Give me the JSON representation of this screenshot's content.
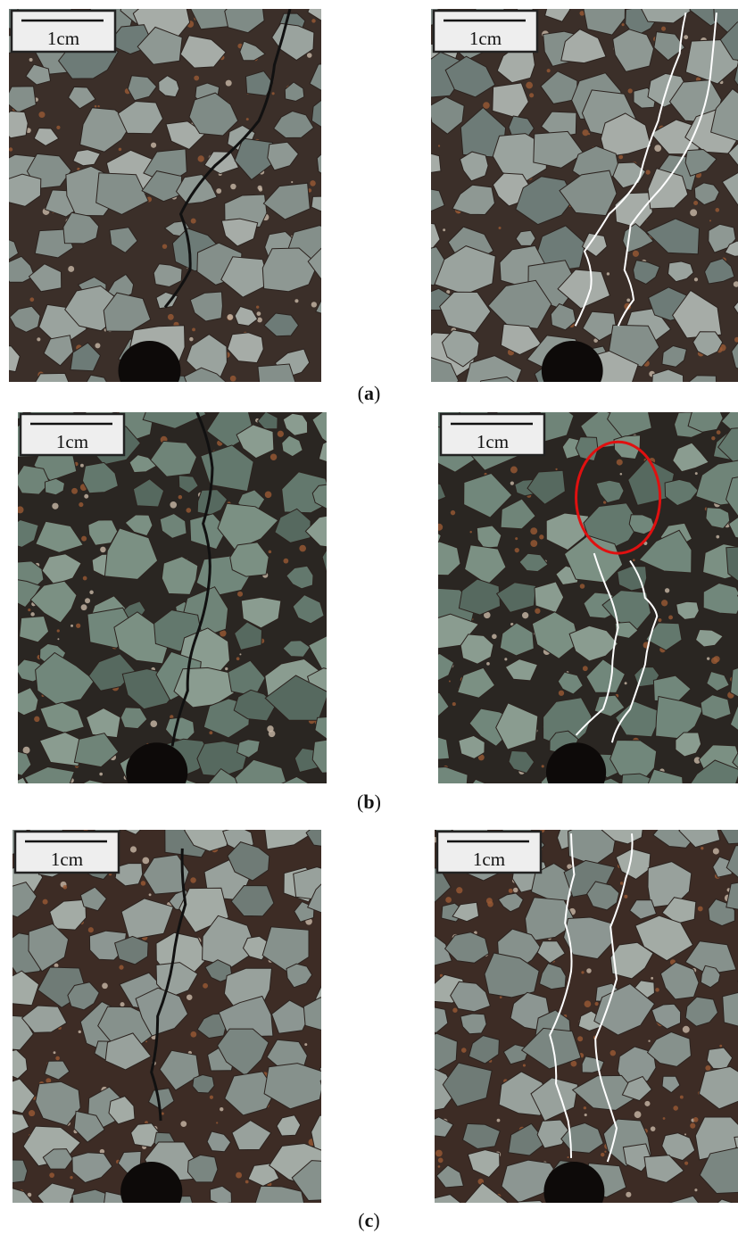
{
  "figure": {
    "rows": [
      {
        "panels": [
          {
            "scale_label": "1cm"
          },
          {
            "scale_label": "1cm"
          }
        ],
        "caption": [
          "(",
          "a",
          ")"
        ]
      },
      {
        "panels": [
          {
            "scale_label": "1cm"
          },
          {
            "scale_label": "1cm"
          }
        ],
        "caption": [
          "(",
          "b",
          ")"
        ]
      },
      {
        "panels": [
          {
            "scale_label": "1cm"
          },
          {
            "scale_label": "1cm"
          }
        ],
        "caption": [
          "(",
          "c",
          ")"
        ]
      }
    ]
  }
}
